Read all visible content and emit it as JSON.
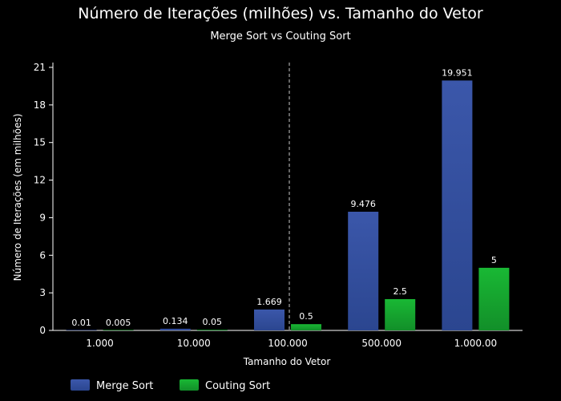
{
  "chart_data": {
    "type": "bar",
    "title": "Número de Iterações (milhões) vs. Tamanho do Vetor",
    "subtitle": "Merge Sort vs Couting Sort",
    "xlabel": "Tamanho do Vetor",
    "ylabel": "Número de Iterações (em milhões)",
    "categories": [
      "1.000",
      "10.000",
      "100.000",
      "500.000",
      "1.000.00"
    ],
    "ylim": [
      0,
      21
    ],
    "yticks": [
      0,
      3,
      6,
      9,
      12,
      15,
      18,
      21
    ],
    "grid": false,
    "legend": "bottom-left",
    "divider_after_category": "100.000",
    "series": [
      {
        "name": "Merge Sort",
        "color": "#3753a3",
        "values": [
          0.01,
          0.134,
          1.669,
          9.476,
          19.951
        ],
        "labels": [
          "0.01",
          "0.134",
          "1.669",
          "9.476",
          "19.951"
        ]
      },
      {
        "name": "Couting Sort",
        "color": "#16ad2f",
        "values": [
          0.005,
          0.05,
          0.5,
          2.5,
          5
        ],
        "labels": [
          "0.005",
          "0.05",
          "0.5",
          "2.5",
          "5"
        ]
      }
    ]
  }
}
